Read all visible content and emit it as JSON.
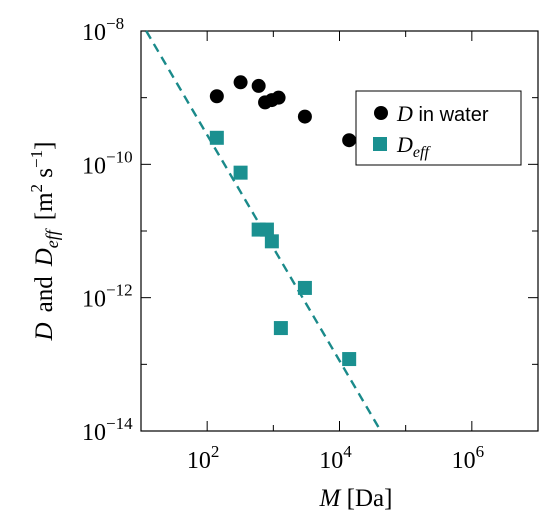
{
  "chart_data": {
    "type": "scatter",
    "x_scale": "log",
    "y_scale": "log",
    "xlim": [
      10,
      10000000
    ],
    "ylim": [
      1e-14,
      1e-08
    ],
    "grid": false,
    "legend_position": "top-right",
    "xlabel": {
      "var": "M",
      "unit": " [Da]"
    },
    "ylabel": {
      "var1": "D",
      "and": "and",
      "var2": "D",
      "var2_sub": "eff",
      "unit_prefix": "[m",
      "unit_sup1": "2",
      "unit_mid": " s",
      "unit_sup2": "−1",
      "unit_suffix": "]"
    },
    "x_ticks": [
      {
        "value": 100,
        "base": "10",
        "exp": "2"
      },
      {
        "value": 10000,
        "base": "10",
        "exp": "4"
      },
      {
        "value": 1000000,
        "base": "10",
        "exp": "6"
      }
    ],
    "y_ticks": [
      {
        "value": 1e-08,
        "base": "10",
        "exp": "−8"
      },
      {
        "value": 1e-10,
        "base": "10",
        "exp": "−10"
      },
      {
        "value": 1e-12,
        "base": "10",
        "exp": "−12"
      },
      {
        "value": 1e-14,
        "base": "10",
        "exp": "−14"
      }
    ],
    "series": [
      {
        "name": "D in water",
        "legend": {
          "var": "D",
          "text": "  in water"
        },
        "marker": "circle",
        "color": "#000000",
        "points": [
          {
            "x": 140,
            "y": 1.05e-09
          },
          {
            "x": 320,
            "y": 1.7e-09
          },
          {
            "x": 600,
            "y": 1.5e-09
          },
          {
            "x": 750,
            "y": 8.5e-10
          },
          {
            "x": 950,
            "y": 9.2e-10
          },
          {
            "x": 1200,
            "y": 1e-09
          },
          {
            "x": 3000,
            "y": 5.2e-10
          },
          {
            "x": 14000,
            "y": 2.3e-10
          }
        ]
      },
      {
        "name": "Deff",
        "legend": {
          "var": "D",
          "sub": "eff"
        },
        "marker": "square",
        "color": "#1a9090",
        "points": [
          {
            "x": 140,
            "y": 2.5e-10
          },
          {
            "x": 320,
            "y": 7.5e-11
          },
          {
            "x": 600,
            "y": 1.05e-11
          },
          {
            "x": 800,
            "y": 1.05e-11
          },
          {
            "x": 950,
            "y": 7e-12
          },
          {
            "x": 1300,
            "y": 3.5e-13
          },
          {
            "x": 3000,
            "y": 1.4e-12
          },
          {
            "x": 14000,
            "y": 1.2e-13
          }
        ]
      }
    ],
    "fit_line": {
      "style": "dashed",
      "color": "#1a8a8a",
      "points": [
        {
          "x": 12,
          "y": 1e-08
        },
        {
          "x": 42000,
          "y": 1e-14
        }
      ]
    }
  }
}
